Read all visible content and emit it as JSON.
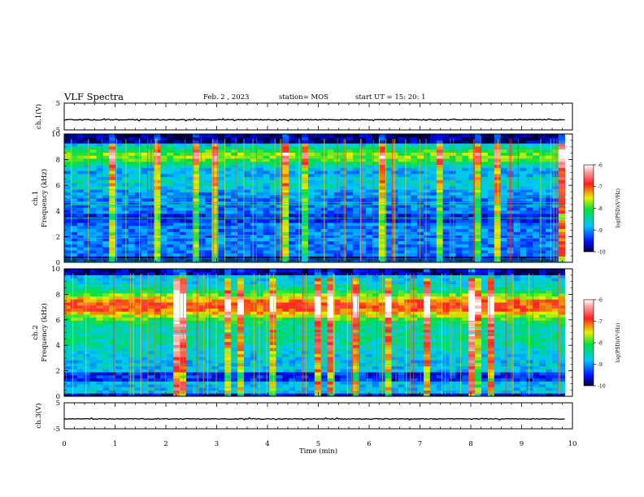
{
  "header": {
    "title": "VLF Spectra",
    "date": "Feb. 2 , 2023",
    "station": "station= MOS",
    "start": "start UT = 15: 20: 1"
  },
  "chart_data": [
    {
      "type": "line",
      "panel": "ch1 waveform",
      "ylabel": "ch.1(V)",
      "yticks": [
        "5",
        "-5"
      ],
      "ylim": [
        -5,
        5
      ],
      "baseline": -1.2
    },
    {
      "type": "heatmap",
      "panel": "ch1 spectrogram",
      "ylabel_line1": "ch.1",
      "ylabel_line2": "Frequency (kHz)",
      "yticks": [
        "10",
        "8",
        "6",
        "4",
        "2",
        "0"
      ],
      "ylim": [
        0,
        10
      ],
      "colorbar": {
        "label": "log(PSD)(V²/Hz)",
        "ticks": [
          "-6",
          "-7",
          "-8",
          "-9",
          "-10"
        ],
        "range": [
          -10,
          -6
        ]
      }
    },
    {
      "type": "heatmap",
      "panel": "ch2 spectrogram",
      "ylabel_line1": "ch.2",
      "ylabel_line2": "Frequency (kHz)",
      "yticks": [
        "10",
        "8",
        "6",
        "4",
        "2",
        "0"
      ],
      "ylim": [
        0,
        10
      ],
      "colorbar": {
        "label": "log(PSD)(V²/Hz)",
        "ticks": [
          "-6",
          "-7",
          "-8",
          "-9",
          "-10"
        ],
        "range": [
          -10,
          -6
        ]
      }
    },
    {
      "type": "line",
      "panel": "ch3 waveform",
      "ylabel": "ch.3(V)",
      "yticks": [
        "5",
        "-5"
      ],
      "ylim": [
        -5,
        5
      ],
      "baseline": -1.2
    }
  ],
  "xaxis": {
    "label": "Time (min)",
    "ticks": [
      "0",
      "1",
      "2",
      "3",
      "4",
      "5",
      "6",
      "7",
      "8",
      "9",
      "10"
    ],
    "xlim": [
      0,
      10
    ],
    "data_end": 9.85
  }
}
